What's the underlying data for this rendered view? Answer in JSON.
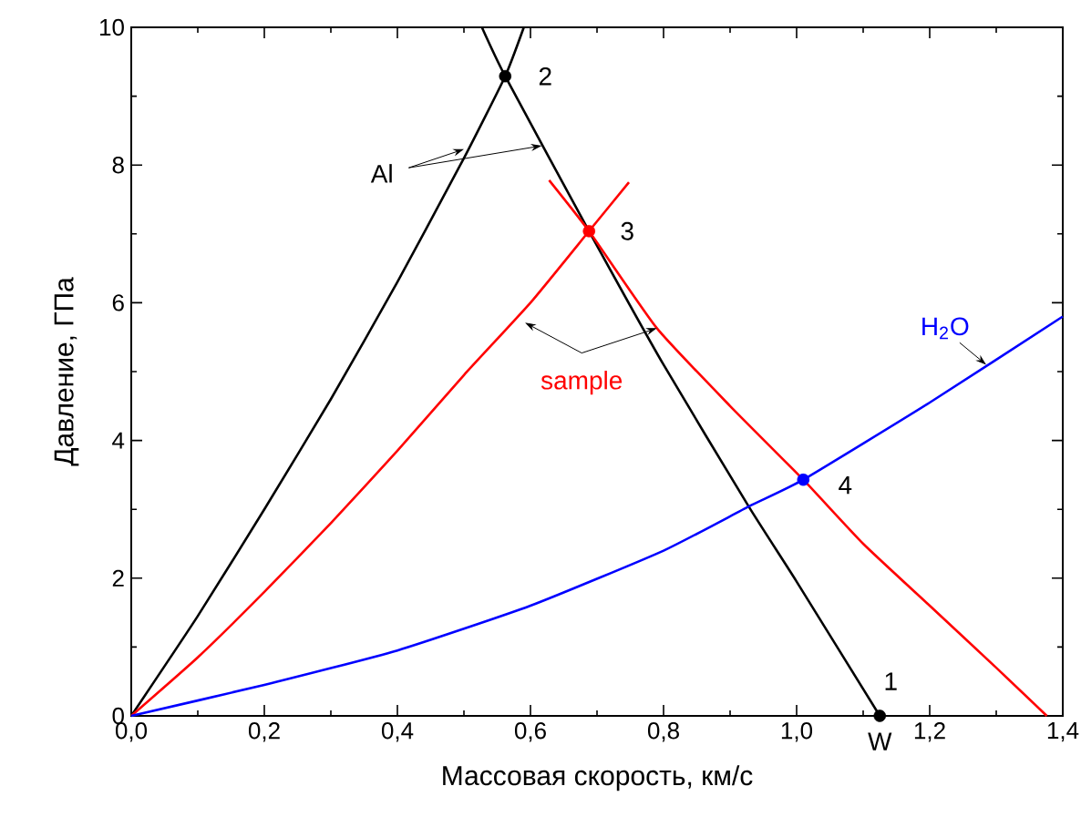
{
  "chart_data": {
    "type": "line",
    "xlabel": "Массовая скорость, км/с",
    "ylabel": "Давление, ГПа",
    "xlim": [
      0,
      1.4
    ],
    "ylim": [
      0,
      10
    ],
    "xticks": [
      {
        "value": 0,
        "label": "0,0"
      },
      {
        "value": 0.2,
        "label": "0,2"
      },
      {
        "value": 0.4,
        "label": "0,4"
      },
      {
        "value": 0.6,
        "label": "0,6"
      },
      {
        "value": 0.8,
        "label": "0,8"
      },
      {
        "value": 1.0,
        "label": "1,0"
      },
      {
        "value": 1.2,
        "label": "1,2"
      },
      {
        "value": 1.4,
        "label": "1,4"
      }
    ],
    "yticks": [
      0,
      2,
      4,
      6,
      8,
      10
    ],
    "series": [
      {
        "color": "#000000",
        "x": [
          0,
          0.1,
          0.2,
          0.3,
          0.4,
          0.5,
          0.562,
          0.59
        ],
        "values": [
          0,
          1.45,
          3.0,
          4.6,
          6.3,
          8.1,
          9.29,
          10
        ]
      },
      {
        "color": "#000000",
        "x": [
          0.527,
          0.562,
          0.688,
          0.8,
          0.928,
          1.0,
          1.125
        ],
        "values": [
          10,
          9.29,
          7.04,
          5.1,
          3.04,
          1.95,
          0
        ]
      },
      {
        "color": "#ff0000",
        "x": [
          0,
          0.1,
          0.2,
          0.3,
          0.4,
          0.5,
          0.6,
          0.688,
          0.748
        ],
        "values": [
          0,
          0.85,
          1.8,
          2.8,
          3.85,
          4.95,
          6.0,
          7.04,
          7.75
        ]
      },
      {
        "color": "#ff0000",
        "x": [
          0.628,
          0.688,
          0.79,
          0.9,
          1.01,
          1.1,
          1.2,
          1.3,
          1.376
        ],
        "values": [
          7.78,
          7.04,
          5.63,
          4.5,
          3.43,
          2.5,
          1.6,
          0.7,
          0
        ]
      },
      {
        "color": "#0000ff",
        "x": [
          0,
          0.2,
          0.4,
          0.6,
          0.8,
          0.928,
          1.01,
          1.2,
          1.4
        ],
        "values": [
          0,
          0.45,
          0.95,
          1.6,
          2.4,
          3.04,
          3.43,
          4.55,
          5.8
        ]
      },
      {
        "type": "scatter",
        "marker": "circle",
        "x": [
          0.562,
          0.688,
          1.01,
          1.125
        ],
        "values": [
          9.29,
          7.04,
          3.43,
          0
        ],
        "colors": [
          "#000000",
          "#ff0000",
          "#0000ff",
          "#000000"
        ]
      }
    ],
    "annotations": [
      {
        "text": "1",
        "x": 1.125,
        "y": 0
      },
      {
        "text": "2",
        "x": 0.562,
        "y": 9.29
      },
      {
        "text": "3",
        "x": 0.688,
        "y": 7.04
      },
      {
        "text": "4",
        "x": 1.01,
        "y": 3.43
      },
      {
        "text": "W",
        "x": 1.125,
        "y": 0
      },
      {
        "text": "Al",
        "x": 0.617,
        "y": 8.28
      },
      {
        "text": "sample",
        "x": 0.79,
        "y": 5.63
      },
      {
        "text": "H$_{2}$O",
        "x": 1.285,
        "y": 5.1
      }
    ]
  }
}
